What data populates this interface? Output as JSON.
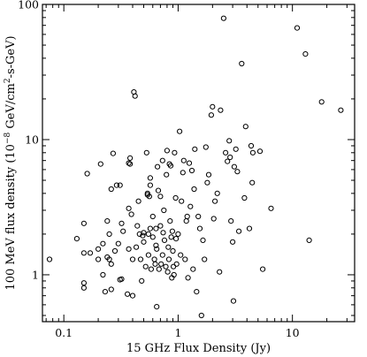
{
  "chart_data": {
    "type": "scatter",
    "title": "",
    "xlabel": "15 GHz Flux Density (Jy)",
    "ylabel_parts": {
      "before": "100 MeV flux density (10",
      "exp1": "−8",
      "mid": " GeV/cm",
      "exp2": "2",
      "after": "-s-GeV)"
    },
    "x_scale": "log",
    "y_scale": "log",
    "xlim": [
      0.065,
      35
    ],
    "ylim": [
      0.45,
      100
    ],
    "x_major_ticks": [
      {
        "value": 0.1,
        "label": "0.1"
      },
      {
        "value": 1,
        "label": "1"
      },
      {
        "value": 10,
        "label": "10"
      }
    ],
    "y_major_ticks": [
      {
        "value": 1,
        "label": "1"
      },
      {
        "value": 10,
        "label": "10"
      },
      {
        "value": 100,
        "label": "100"
      }
    ],
    "grid": false,
    "marker": "open-circle",
    "series": [
      {
        "points": [
          [
            0.075,
            1.3
          ],
          [
            0.13,
            1.85
          ],
          [
            0.15,
            2.4
          ],
          [
            0.16,
            5.6
          ],
          [
            0.15,
            1.45
          ],
          [
            0.17,
            1.45
          ],
          [
            0.15,
            0.87
          ],
          [
            0.15,
            0.8
          ],
          [
            0.2,
            1.3
          ],
          [
            0.2,
            1.55
          ],
          [
            0.21,
            6.6
          ],
          [
            0.22,
            1.0
          ],
          [
            0.22,
            1.7
          ],
          [
            0.23,
            0.75
          ],
          [
            0.24,
            1.35
          ],
          [
            0.24,
            2.5
          ],
          [
            0.25,
            1.3
          ],
          [
            0.25,
            2.0
          ],
          [
            0.26,
            0.78
          ],
          [
            0.26,
            1.2
          ],
          [
            0.26,
            4.3
          ],
          [
            0.27,
            7.9
          ],
          [
            0.28,
            1.5
          ],
          [
            0.29,
            4.6
          ],
          [
            0.3,
            1.7
          ],
          [
            0.31,
            0.92
          ],
          [
            0.31,
            4.6
          ],
          [
            0.32,
            2.4
          ],
          [
            0.32,
            0.93
          ],
          [
            0.33,
            2.1
          ],
          [
            0.36,
            0.72
          ],
          [
            0.37,
            1.55
          ],
          [
            0.37,
            3.1
          ],
          [
            0.37,
            6.7
          ],
          [
            0.38,
            7.3
          ],
          [
            0.38,
            6.6
          ],
          [
            0.39,
            2.8
          ],
          [
            0.4,
            1.3
          ],
          [
            0.4,
            0.7
          ],
          [
            0.41,
            22.5
          ],
          [
            0.42,
            21.0
          ],
          [
            0.43,
            1.6
          ],
          [
            0.44,
            2.3
          ],
          [
            0.45,
            3.5
          ],
          [
            0.46,
            2.0
          ],
          [
            0.47,
            1.3
          ],
          [
            0.48,
            0.9
          ],
          [
            0.49,
            1.95
          ],
          [
            0.5,
            2.05
          ],
          [
            0.5,
            1.75
          ],
          [
            0.52,
            1.15
          ],
          [
            0.53,
            8.0
          ],
          [
            0.54,
            3.9
          ],
          [
            0.54,
            4.0
          ],
          [
            0.55,
            2.0
          ],
          [
            0.55,
            1.4
          ],
          [
            0.56,
            3.8
          ],
          [
            0.57,
            5.2
          ],
          [
            0.57,
            2.2
          ],
          [
            0.57,
            4.6
          ],
          [
            0.58,
            1.1
          ],
          [
            0.6,
            2.7
          ],
          [
            0.6,
            1.9
          ],
          [
            0.62,
            1.3
          ],
          [
            0.63,
            1.2
          ],
          [
            0.64,
            1.65
          ],
          [
            0.64,
            2.2
          ],
          [
            0.65,
            1.55
          ],
          [
            0.65,
            0.58
          ],
          [
            0.66,
            6.3
          ],
          [
            0.67,
            4.2
          ],
          [
            0.68,
            1.1
          ],
          [
            0.7,
            3.8
          ],
          [
            0.7,
            2.3
          ],
          [
            0.71,
            1.2
          ],
          [
            0.73,
            1.4
          ],
          [
            0.73,
            7.0
          ],
          [
            0.74,
            2.05
          ],
          [
            0.75,
            3.0
          ],
          [
            0.76,
            1.8
          ],
          [
            0.78,
            1.15
          ],
          [
            0.79,
            5.5
          ],
          [
            0.8,
            8.3
          ],
          [
            0.81,
            1.05
          ],
          [
            0.82,
            1.6
          ],
          [
            0.83,
            1.3
          ],
          [
            0.84,
            6.6
          ],
          [
            0.85,
            2.5
          ],
          [
            0.86,
            6.4
          ],
          [
            0.87,
            1.9
          ],
          [
            0.88,
            0.95
          ],
          [
            0.89,
            2.1
          ],
          [
            0.9,
            1.5
          ],
          [
            0.91,
            1.15
          ],
          [
            0.92,
            1.0
          ],
          [
            0.93,
            8.0
          ],
          [
            0.95,
            3.7
          ],
          [
            0.96,
            1.85
          ],
          [
            0.97,
            1.2
          ],
          [
            1.0,
            2.0
          ],
          [
            1.03,
            11.5
          ],
          [
            1.05,
            1.4
          ],
          [
            1.07,
            3.5
          ],
          [
            1.1,
            5.7
          ],
          [
            1.12,
            7.0
          ],
          [
            1.15,
            1.3
          ],
          [
            1.18,
            2.5
          ],
          [
            1.2,
            2.7
          ],
          [
            1.22,
            0.95
          ],
          [
            1.25,
            6.7
          ],
          [
            1.28,
            3.2
          ],
          [
            1.32,
            5.9
          ],
          [
            1.35,
            1.1
          ],
          [
            1.38,
            4.3
          ],
          [
            1.4,
            8.5
          ],
          [
            1.45,
            0.75
          ],
          [
            1.5,
            2.7
          ],
          [
            1.55,
            2.2
          ],
          [
            1.6,
            0.5
          ],
          [
            1.65,
            1.8
          ],
          [
            1.7,
            1.3
          ],
          [
            1.75,
            8.8
          ],
          [
            1.8,
            4.8
          ],
          [
            1.85,
            5.5
          ],
          [
            1.95,
            15.2
          ],
          [
            2.0,
            17.5
          ],
          [
            2.05,
            2.6
          ],
          [
            2.1,
            3.5
          ],
          [
            2.2,
            4.0
          ],
          [
            2.3,
            1.05
          ],
          [
            2.35,
            16.5
          ],
          [
            2.5,
            79.0
          ],
          [
            2.6,
            8.0
          ],
          [
            2.7,
            6.9
          ],
          [
            2.8,
            9.8
          ],
          [
            2.85,
            7.4
          ],
          [
            2.9,
            2.5
          ],
          [
            3.0,
            1.75
          ],
          [
            3.05,
            0.64
          ],
          [
            3.1,
            6.3
          ],
          [
            3.2,
            8.5
          ],
          [
            3.3,
            5.8
          ],
          [
            3.4,
            2.1
          ],
          [
            3.6,
            36.5
          ],
          [
            3.8,
            3.7
          ],
          [
            3.9,
            12.5
          ],
          [
            4.2,
            2.2
          ],
          [
            4.35,
            9.0
          ],
          [
            4.45,
            4.8
          ],
          [
            4.5,
            8.0
          ],
          [
            5.2,
            8.2
          ],
          [
            5.5,
            1.1
          ],
          [
            6.5,
            3.1
          ],
          [
            11.0,
            67.0
          ],
          [
            13.0,
            43.0
          ],
          [
            14.0,
            1.8
          ],
          [
            18.0,
            19.0
          ],
          [
            26.5,
            16.5
          ]
        ]
      }
    ]
  }
}
